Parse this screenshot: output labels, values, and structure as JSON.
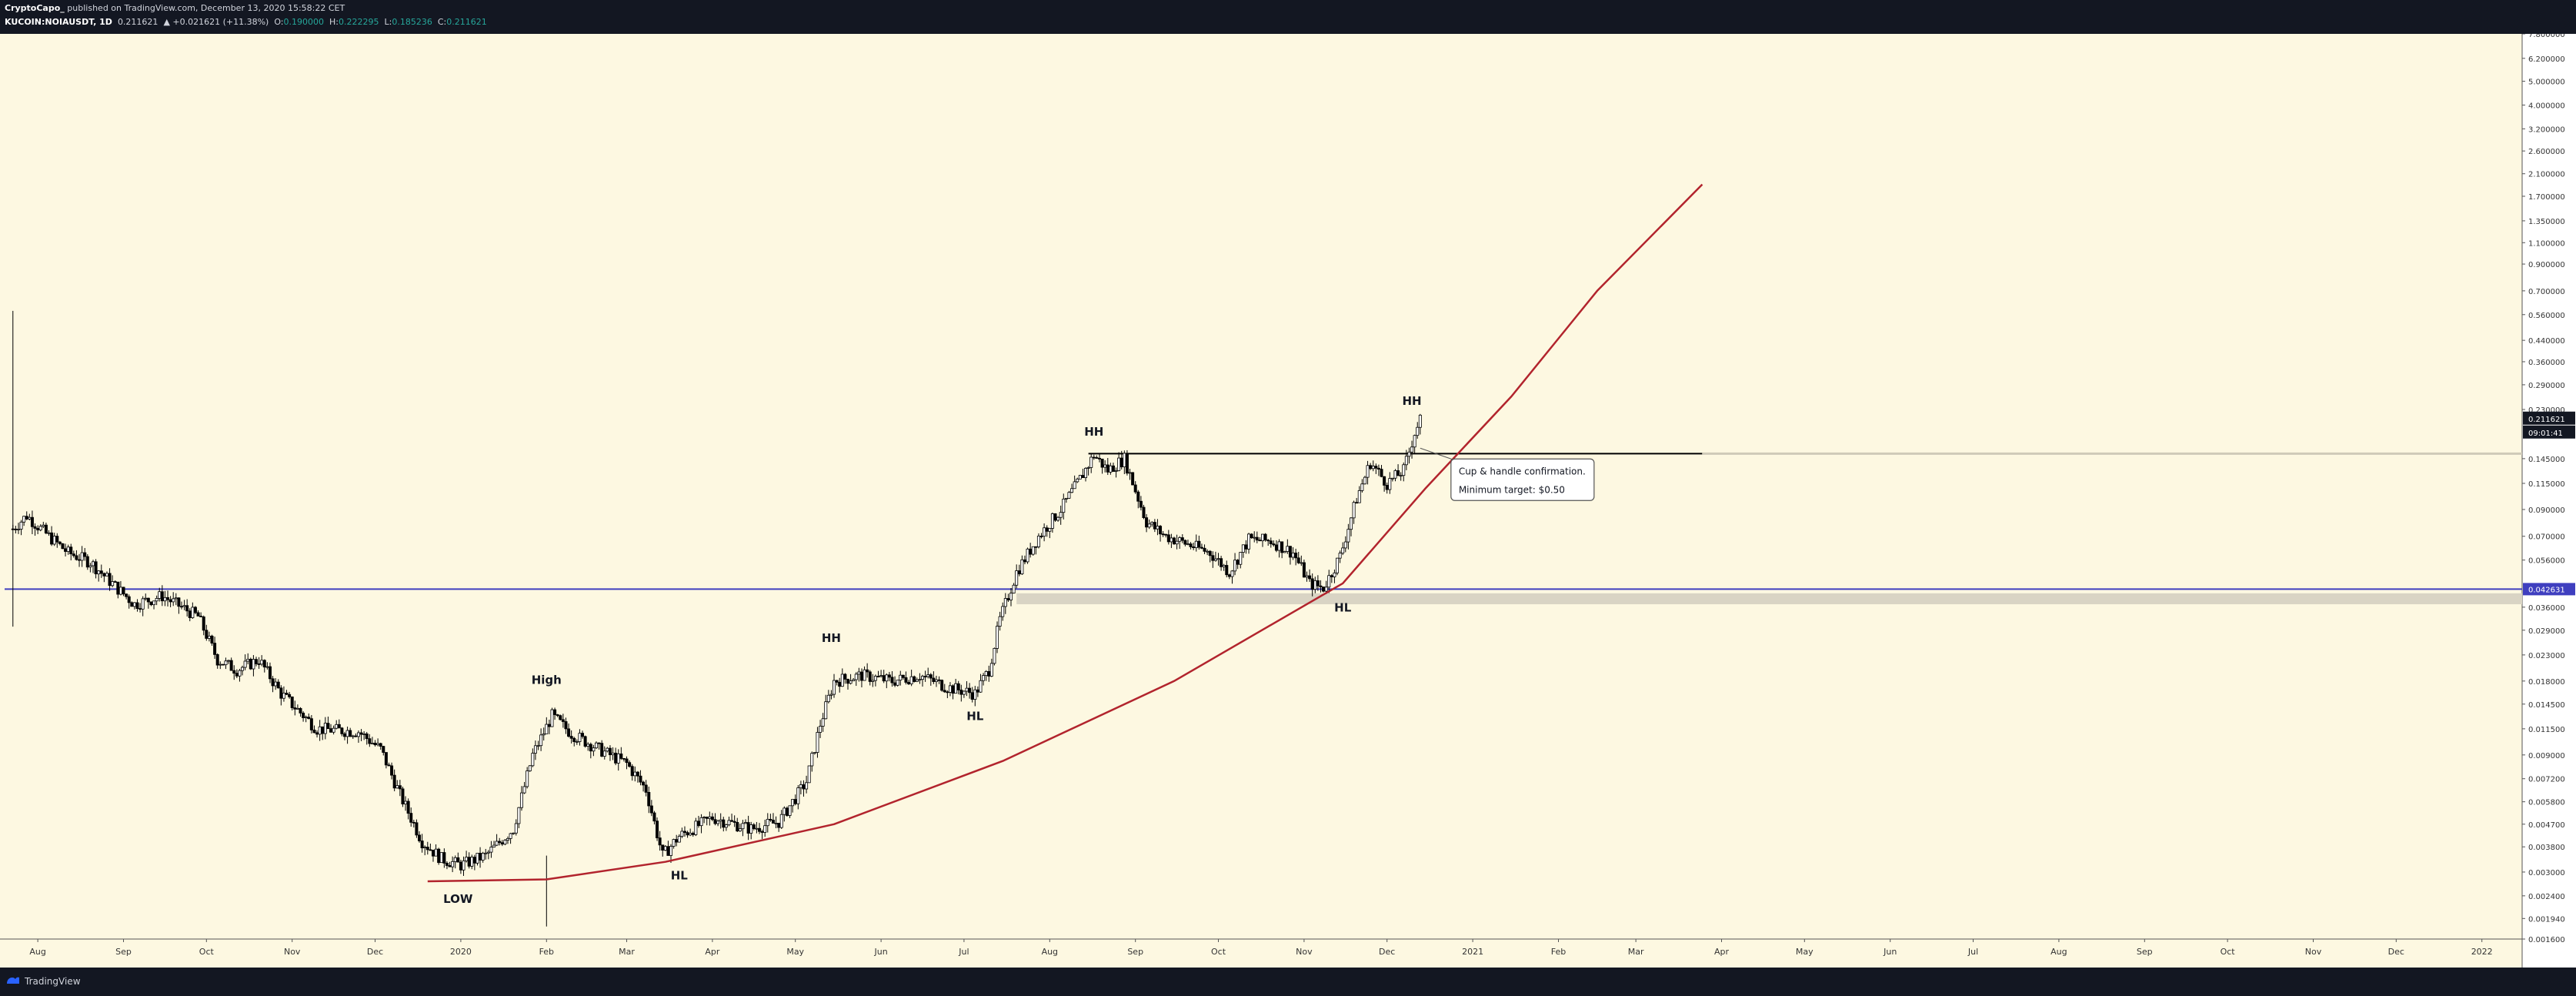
{
  "header": {
    "author": "CryptoCapo_",
    "published": "published on TradingView.com, December 13, 2020 15:58:22 CET",
    "symbol": "KUCOIN:NOIAUSDT, 1D",
    "last": "0.211621",
    "change": "▲ +0.021621 (+11.38%)",
    "o_label": "O:",
    "o": "0.190000",
    "h_label": "H:",
    "h": "0.222295",
    "l_label": "L:",
    "l": "0.185236",
    "c_label": "C:",
    "c": "0.211621"
  },
  "footer": {
    "brand": "TradingView",
    "logo_icon": "tradingview-logo-icon"
  },
  "chart_data": {
    "type": "candlestick",
    "scale": "log",
    "ylim": [
      0.0016,
      7.8
    ],
    "xlim": [
      "2019-07-20",
      "2022-01-15"
    ],
    "grid": false,
    "x_ticks": [
      {
        "label": "Aug",
        "date": "2019-08-01"
      },
      {
        "label": "Sep",
        "date": "2019-09-01"
      },
      {
        "label": "Oct",
        "date": "2019-10-01"
      },
      {
        "label": "Nov",
        "date": "2019-11-01"
      },
      {
        "label": "Dec",
        "date": "2019-12-01"
      },
      {
        "label": "2020",
        "date": "2020-01-01"
      },
      {
        "label": "Feb",
        "date": "2020-02-01"
      },
      {
        "label": "Mar",
        "date": "2020-03-01"
      },
      {
        "label": "Apr",
        "date": "2020-04-01"
      },
      {
        "label": "May",
        "date": "2020-05-01"
      },
      {
        "label": "Jun",
        "date": "2020-06-01"
      },
      {
        "label": "Jul",
        "date": "2020-07-01"
      },
      {
        "label": "Aug",
        "date": "2020-08-01"
      },
      {
        "label": "Sep",
        "date": "2020-09-01"
      },
      {
        "label": "Oct",
        "date": "2020-10-01"
      },
      {
        "label": "Nov",
        "date": "2020-11-01"
      },
      {
        "label": "Dec",
        "date": "2020-12-01"
      },
      {
        "label": "2021",
        "date": "2021-01-01"
      },
      {
        "label": "Feb",
        "date": "2021-02-01"
      },
      {
        "label": "Mar",
        "date": "2021-03-01"
      },
      {
        "label": "Apr",
        "date": "2021-04-01"
      },
      {
        "label": "May",
        "date": "2021-05-01"
      },
      {
        "label": "Jun",
        "date": "2021-06-01"
      },
      {
        "label": "Jul",
        "date": "2021-07-01"
      },
      {
        "label": "Aug",
        "date": "2021-08-01"
      },
      {
        "label": "Sep",
        "date": "2021-09-01"
      },
      {
        "label": "Oct",
        "date": "2021-10-01"
      },
      {
        "label": "Nov",
        "date": "2021-11-01"
      },
      {
        "label": "Dec",
        "date": "2021-12-01"
      },
      {
        "label": "2022",
        "date": "2022-01-01"
      }
    ],
    "y_ticks": [
      "7.800000",
      "6.200000",
      "5.000000",
      "4.000000",
      "3.200000",
      "2.600000",
      "2.100000",
      "1.700000",
      "1.350000",
      "1.100000",
      "0.900000",
      "0.700000",
      "0.560000",
      "0.440000",
      "0.360000",
      "0.290000",
      "0.230000",
      "0.145000",
      "0.115000",
      "0.090000",
      "0.070000",
      "0.056000",
      "0.036000",
      "0.029000",
      "0.023000",
      "0.018000",
      "0.014500",
      "0.011500",
      "0.009000",
      "0.007200",
      "0.005800",
      "0.004700",
      "0.003800",
      "0.003000",
      "0.002400",
      "0.001940",
      "0.001600"
    ],
    "price_label": "0.211621",
    "countdown_label": "09:01:41",
    "level_label": "0.042631",
    "level_value": 0.042631,
    "resistance_value": 0.152,
    "resistance_end": "2021-03-25",
    "support_zone": [
      0.037,
      0.041
    ],
    "curve": [
      {
        "date": "2019-12-20",
        "y": 0.00275
      },
      {
        "date": "2020-02-01",
        "y": 0.0028
      },
      {
        "date": "2020-03-15",
        "y": 0.0033
      },
      {
        "date": "2020-05-15",
        "y": 0.0047
      },
      {
        "date": "2020-07-15",
        "y": 0.0085
      },
      {
        "date": "2020-09-15",
        "y": 0.018
      },
      {
        "date": "2020-11-15",
        "y": 0.045
      },
      {
        "date": "2020-12-15",
        "y": 0.11
      },
      {
        "date": "2021-01-15",
        "y": 0.26
      },
      {
        "date": "2021-02-15",
        "y": 0.7
      },
      {
        "date": "2021-03-25",
        "y": 1.9
      }
    ],
    "series_anchors": [
      {
        "date": "2019-07-23",
        "y": 0.075
      },
      {
        "date": "2019-07-28",
        "y": 0.085
      },
      {
        "date": "2019-08-05",
        "y": 0.07
      },
      {
        "date": "2019-08-12",
        "y": 0.06
      },
      {
        "date": "2019-08-20",
        "y": 0.055
      },
      {
        "date": "2019-08-27",
        "y": 0.046
      },
      {
        "date": "2019-09-05",
        "y": 0.037
      },
      {
        "date": "2019-09-15",
        "y": 0.04
      },
      {
        "date": "2019-09-22",
        "y": 0.036
      },
      {
        "date": "2019-09-28",
        "y": 0.033
      },
      {
        "date": "2019-10-05",
        "y": 0.022
      },
      {
        "date": "2019-10-12",
        "y": 0.02
      },
      {
        "date": "2019-10-20",
        "y": 0.022
      },
      {
        "date": "2019-10-28",
        "y": 0.016
      },
      {
        "date": "2019-11-10",
        "y": 0.0115
      },
      {
        "date": "2019-11-25",
        "y": 0.0112
      },
      {
        "date": "2019-12-03",
        "y": 0.0095
      },
      {
        "date": "2019-12-10",
        "y": 0.0062
      },
      {
        "date": "2019-12-18",
        "y": 0.004
      },
      {
        "date": "2019-12-25",
        "y": 0.0034
      },
      {
        "date": "2020-01-01",
        "y": 0.0032
      },
      {
        "date": "2020-01-10",
        "y": 0.0035
      },
      {
        "date": "2020-01-20",
        "y": 0.0045
      },
      {
        "date": "2020-01-27",
        "y": 0.009
      },
      {
        "date": "2020-02-03",
        "y": 0.013
      },
      {
        "date": "2020-02-10",
        "y": 0.011
      },
      {
        "date": "2020-02-20",
        "y": 0.0095
      },
      {
        "date": "2020-03-01",
        "y": 0.0083
      },
      {
        "date": "2020-03-08",
        "y": 0.0065
      },
      {
        "date": "2020-03-14",
        "y": 0.0035
      },
      {
        "date": "2020-03-20",
        "y": 0.0042
      },
      {
        "date": "2020-04-01",
        "y": 0.005
      },
      {
        "date": "2020-04-15",
        "y": 0.0045
      },
      {
        "date": "2020-04-25",
        "y": 0.0048
      },
      {
        "date": "2020-05-05",
        "y": 0.007
      },
      {
        "date": "2020-05-10",
        "y": 0.012
      },
      {
        "date": "2020-05-15",
        "y": 0.018
      },
      {
        "date": "2020-05-25",
        "y": 0.019
      },
      {
        "date": "2020-06-05",
        "y": 0.018
      },
      {
        "date": "2020-06-15",
        "y": 0.019
      },
      {
        "date": "2020-06-25",
        "y": 0.017
      },
      {
        "date": "2020-07-05",
        "y": 0.016
      },
      {
        "date": "2020-07-10",
        "y": 0.02
      },
      {
        "date": "2020-07-14",
        "y": 0.032
      },
      {
        "date": "2020-07-20",
        "y": 0.05
      },
      {
        "date": "2020-07-28",
        "y": 0.07
      },
      {
        "date": "2020-08-05",
        "y": 0.09
      },
      {
        "date": "2020-08-12",
        "y": 0.12
      },
      {
        "date": "2020-08-17",
        "y": 0.15
      },
      {
        "date": "2020-08-22",
        "y": 0.13
      },
      {
        "date": "2020-08-28",
        "y": 0.145
      },
      {
        "date": "2020-09-05",
        "y": 0.08
      },
      {
        "date": "2020-09-12",
        "y": 0.07
      },
      {
        "date": "2020-09-20",
        "y": 0.065
      },
      {
        "date": "2020-09-28",
        "y": 0.06
      },
      {
        "date": "2020-10-05",
        "y": 0.05
      },
      {
        "date": "2020-10-12",
        "y": 0.068
      },
      {
        "date": "2020-10-20",
        "y": 0.067
      },
      {
        "date": "2020-10-28",
        "y": 0.06
      },
      {
        "date": "2020-11-03",
        "y": 0.045
      },
      {
        "date": "2020-11-08",
        "y": 0.043
      },
      {
        "date": "2020-11-14",
        "y": 0.058
      },
      {
        "date": "2020-11-20",
        "y": 0.1
      },
      {
        "date": "2020-11-25",
        "y": 0.14
      },
      {
        "date": "2020-12-01",
        "y": 0.115
      },
      {
        "date": "2020-12-07",
        "y": 0.13
      },
      {
        "date": "2020-12-11",
        "y": 0.185
      },
      {
        "date": "2020-12-13",
        "y": 0.211
      }
    ],
    "spikes": [
      {
        "date": "2019-07-23",
        "low": 0.03,
        "high": 0.58
      },
      {
        "date": "2020-02-01",
        "low": 0.0018,
        "high": 0.0035
      }
    ],
    "annotations": [
      {
        "text": "LOW",
        "date": "2019-12-31",
        "y": 0.00225
      },
      {
        "text": "High",
        "date": "2020-02-01",
        "y": 0.0175
      },
      {
        "text": "HL",
        "date": "2020-03-20",
        "y": 0.0028
      },
      {
        "text": "HH",
        "date": "2020-05-14",
        "y": 0.026
      },
      {
        "text": "HL",
        "date": "2020-07-05",
        "y": 0.0125
      },
      {
        "text": "HH",
        "date": "2020-08-17",
        "y": 0.18
      },
      {
        "text": "HL",
        "date": "2020-11-15",
        "y": 0.0345
      },
      {
        "text": "HH",
        "date": "2020-12-10",
        "y": 0.24
      }
    ],
    "callout": {
      "lines": [
        "Cup & handle confirmation.",
        "Minimum target: $0.50"
      ],
      "anchor_date": "2020-12-13",
      "anchor_y": 0.16
    },
    "colors": {
      "background": "#fdf8e1",
      "axis_bg": "#ffffff",
      "curve": "#b2242d",
      "level": "#3f3fbf",
      "resistance": "#000000",
      "support_zone": "#d9d4c4",
      "price_label_bg": "#131722",
      "level_label_bg": "#3f3fbf"
    }
  }
}
